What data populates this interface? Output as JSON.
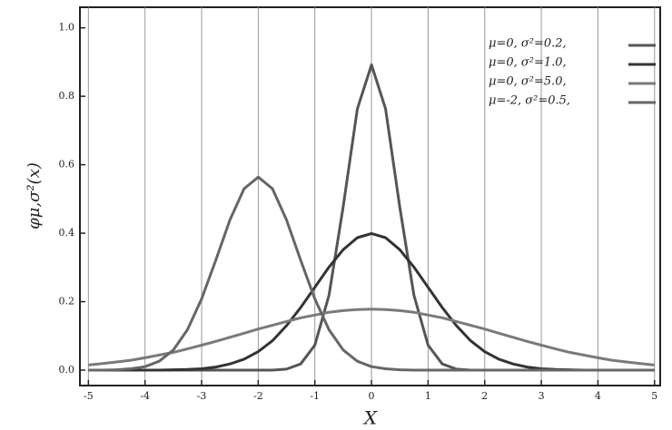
{
  "chart_data": {
    "type": "line",
    "x_label": "X",
    "y_label": "φμ,σ²(x)",
    "x": [
      -5,
      -4.75,
      -4.5,
      -4.25,
      -4,
      -3.75,
      -3.5,
      -3.25,
      -3,
      -2.75,
      -2.5,
      -2.25,
      -2,
      -1.75,
      -1.5,
      -1.25,
      -1,
      -0.75,
      -0.5,
      -0.25,
      0,
      0.25,
      0.5,
      0.75,
      1,
      1.25,
      1.5,
      1.75,
      2,
      2.25,
      2.5,
      2.75,
      3,
      3.25,
      3.5,
      3.75,
      4,
      4.25,
      4.5,
      4.75,
      5
    ],
    "series": [
      {
        "name": "μ=0,  σ²=0.2,",
        "color": "#555555",
        "values": [
          0,
          0,
          0,
          0,
          0,
          0,
          0,
          0,
          0,
          0,
          0,
          0,
          0,
          0,
          0.003,
          0.018,
          0.073,
          0.219,
          0.477,
          0.763,
          0.892,
          0.763,
          0.477,
          0.219,
          0.073,
          0.018,
          0.003,
          0,
          0,
          0,
          0,
          0,
          0,
          0,
          0,
          0,
          0,
          0,
          0,
          0,
          0
        ]
      },
      {
        "name": "μ=0,  σ²=1.0,",
        "color": "#333333",
        "values": [
          0,
          0,
          0,
          0,
          0,
          0,
          0.001,
          0.002,
          0.004,
          0.009,
          0.018,
          0.032,
          0.054,
          0.086,
          0.13,
          0.183,
          0.242,
          0.301,
          0.352,
          0.387,
          0.399,
          0.387,
          0.352,
          0.301,
          0.242,
          0.183,
          0.13,
          0.086,
          0.054,
          0.032,
          0.018,
          0.009,
          0.004,
          0.002,
          0.001,
          0,
          0,
          0,
          0,
          0,
          0
        ]
      },
      {
        "name": "μ=0,  σ²=5.0,",
        "color": "#7a7a7a",
        "values": [
          0.015,
          0.019,
          0.024,
          0.029,
          0.036,
          0.044,
          0.052,
          0.062,
          0.073,
          0.084,
          0.096,
          0.108,
          0.12,
          0.131,
          0.142,
          0.153,
          0.161,
          0.169,
          0.174,
          0.177,
          0.178,
          0.177,
          0.174,
          0.169,
          0.161,
          0.153,
          0.142,
          0.131,
          0.12,
          0.108,
          0.096,
          0.084,
          0.073,
          0.062,
          0.052,
          0.044,
          0.036,
          0.029,
          0.024,
          0.019,
          0.015
        ]
      },
      {
        "name": "μ=-2,  σ²=0.5,",
        "color": "#666666",
        "values": [
          0,
          0,
          0.001,
          0.004,
          0.01,
          0.026,
          0.059,
          0.118,
          0.208,
          0.321,
          0.439,
          0.53,
          0.564,
          0.53,
          0.439,
          0.321,
          0.208,
          0.118,
          0.059,
          0.026,
          0.01,
          0.004,
          0.001,
          0,
          0,
          0,
          0,
          0,
          0,
          0,
          0,
          0,
          0,
          0,
          0,
          0,
          0,
          0,
          0,
          0,
          0
        ]
      }
    ],
    "xlim": [
      -5.15,
      5.1
    ],
    "ylim": [
      -0.045,
      1.06
    ],
    "xticks": [
      -5,
      -4,
      -3,
      -2,
      -1,
      0,
      1,
      2,
      3,
      4,
      5
    ],
    "yticks": [
      {
        "value": 0,
        "label": "0.0"
      },
      {
        "value": 0.2,
        "label": "0.2"
      },
      {
        "value": 0.4,
        "label": "0.4"
      },
      {
        "value": 0.6,
        "label": "0.6"
      },
      {
        "value": 0.8,
        "label": "0.8"
      },
      {
        "value": 1,
        "label": "1.0"
      }
    ],
    "grid": true,
    "legend": "upper right"
  }
}
